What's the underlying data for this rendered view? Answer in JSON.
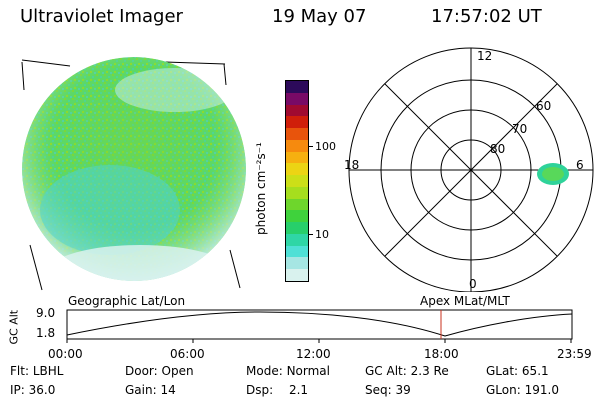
{
  "header": {
    "instrument": "Ultraviolet Imager",
    "date": "19 May 07",
    "time": "17:57:02 UT"
  },
  "colorbar": {
    "unit_label": "photon cm⁻²s⁻¹",
    "ticks": [
      "100",
      "10"
    ],
    "colors": [
      "#d9f2ee",
      "#a6e6e3",
      "#4fe0d6",
      "#2fd6a6",
      "#27cf6b",
      "#3fd23c",
      "#6ed62c",
      "#a6de1e",
      "#ccdf18",
      "#ecd414",
      "#f6b010",
      "#f68a0e",
      "#e8540c",
      "#d01e0a",
      "#a00a30",
      "#780a66",
      "#2c0a5a"
    ]
  },
  "polar_plot": {
    "mlt_labels": [
      "12",
      "18",
      "6",
      "0"
    ],
    "lat_labels": [
      "60",
      "70",
      "80"
    ]
  },
  "timeline": {
    "left_label": "Geographic Lat/Lon",
    "right_label": "Apex MLat/MLT",
    "y_title": "GC Alt",
    "y_ticks": [
      "9.0",
      "1.8"
    ],
    "x_ticks": [
      "00:00",
      "06:00",
      "12:00",
      "18:00",
      "23:59"
    ],
    "marker_color": "#c8321e"
  },
  "footer": {
    "row1": [
      {
        "label": "Flt:",
        "value": "LBHL"
      },
      {
        "label": "Door:",
        "value": "Open"
      },
      {
        "label": "Mode:",
        "value": "Normal"
      },
      {
        "label": "GC Alt:",
        "value": "2.3 Re"
      },
      {
        "label": "GLat:",
        "value": "65.1"
      }
    ],
    "row2": [
      {
        "label": "IP:",
        "value": "36.0"
      },
      {
        "label": "Gain:",
        "value": "14"
      },
      {
        "label": "Dsp:",
        "value": "2.1"
      },
      {
        "label": "Seq:",
        "value": "39"
      },
      {
        "label": "GLon:",
        "value": "191.0"
      }
    ]
  }
}
